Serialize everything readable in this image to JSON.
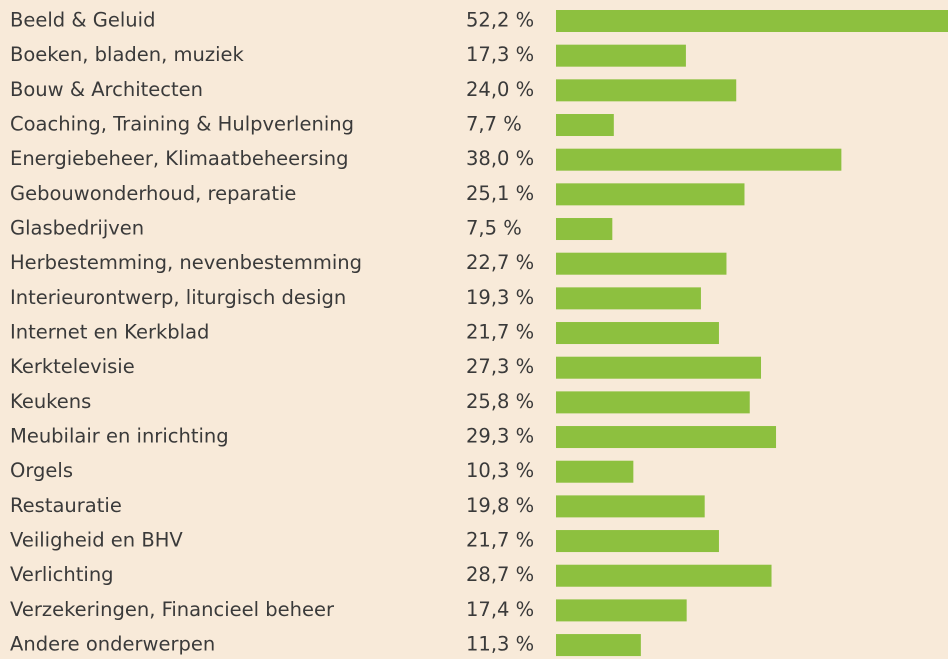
{
  "chart_data": {
    "type": "barh",
    "categories": [
      "Beeld & Geluid",
      "Boeken, bladen, muziek",
      "Bouw & Architecten",
      "Coaching, Training & Hulpverlening",
      "Energiebeheer, Klimaatbeheersing",
      "Gebouwonderhoud, reparatie",
      "Glasbedrijven",
      "Herbestemming, nevenbestemming",
      "Interieurontwerp, liturgisch design",
      "Internet en Kerkblad",
      "Kerktelevisie",
      "Keukens",
      "Meubilair en inrichting",
      "Orgels",
      "Restauratie",
      "Veiligheid en BHV",
      "Verlichting",
      "Verzekeringen, Financieel beheer",
      "Andere onderwerpen"
    ],
    "values": [
      52.2,
      17.3,
      24.0,
      7.7,
      38.0,
      25.1,
      7.5,
      22.7,
      19.3,
      21.7,
      27.3,
      25.8,
      29.3,
      10.3,
      19.8,
      21.7,
      28.7,
      17.4,
      11.3
    ],
    "value_labels": [
      "52,2 %",
      "17,3 %",
      "24,0 %",
      "7,7 %",
      "38,0 %",
      "25,1 %",
      "7,5 %",
      "22,7 %",
      "19,3 %",
      "21,7 %",
      "27,3 %",
      "25,8 %",
      "29,3 %",
      "10,3 %",
      "19,8 %",
      "21,7 %",
      "28,7 %",
      "17,4 %",
      "11,3 %"
    ],
    "color": "#8dc03f"
  }
}
